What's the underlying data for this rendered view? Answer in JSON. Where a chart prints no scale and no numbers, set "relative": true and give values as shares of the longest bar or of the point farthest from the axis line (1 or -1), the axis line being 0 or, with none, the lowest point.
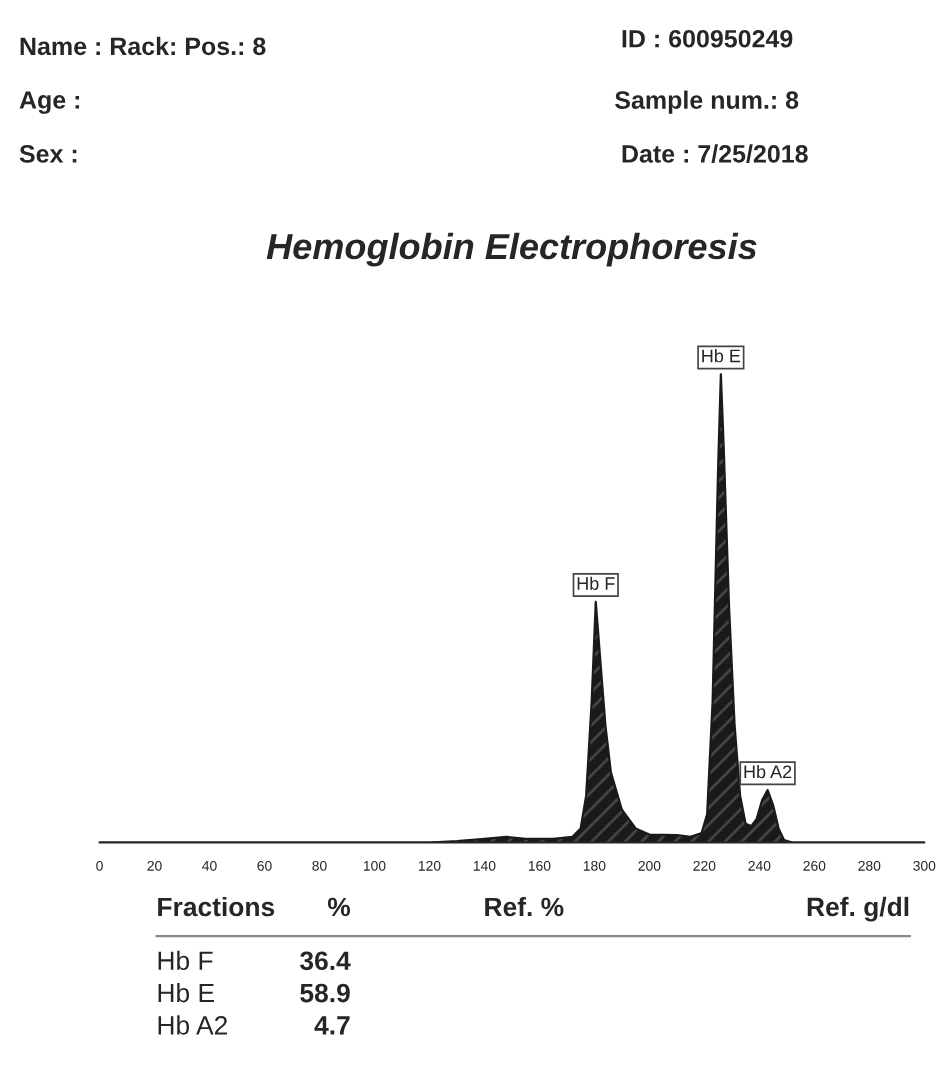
{
  "chart_data": {
    "type": "area",
    "title": "Hemoglobin Electrophoresis",
    "relative": true,
    "x": [
      0,
      120,
      130,
      140,
      148,
      155,
      165,
      172,
      175,
      177,
      179,
      180.5,
      182,
      184,
      186,
      190,
      195,
      200,
      210,
      215,
      219,
      221,
      223,
      225,
      226,
      227,
      229,
      231,
      233,
      235,
      237,
      239,
      241,
      243,
      245,
      247,
      249,
      252,
      300
    ],
    "series": [
      {
        "color": "#1a1a1a",
        "values": [
          0,
          0,
          0.003,
          0.008,
          0.012,
          0.008,
          0.008,
          0.012,
          0.03,
          0.1,
          0.3,
          0.514,
          0.4,
          0.25,
          0.15,
          0.07,
          0.03,
          0.017,
          0.016,
          0.012,
          0.02,
          0.06,
          0.3,
          0.8,
          1.0,
          0.85,
          0.5,
          0.25,
          0.1,
          0.04,
          0.035,
          0.05,
          0.09,
          0.112,
          0.08,
          0.03,
          0.005,
          0,
          0
        ]
      }
    ],
    "xlim": [
      0,
      300
    ],
    "xticks": [
      0,
      20,
      40,
      60,
      80,
      100,
      120,
      140,
      160,
      180,
      200,
      220,
      240,
      260,
      280,
      300
    ],
    "grid": false,
    "legend": false,
    "annotations": [
      "Name : Rack: Pos.: 8",
      "ID : 600950249",
      "Age :",
      "Sample num.: 8",
      "Sex :",
      "Date : 7/25/2018",
      "Fractions",
      "%",
      "Ref. %",
      "Ref. g/dl",
      "Hb F",
      "36.4",
      "Hb E",
      "58.9",
      "Hb A2",
      "4.7",
      {
        "text": "Hb F",
        "x": 180.5,
        "y": 0.514
      },
      {
        "text": "Hb E",
        "x": 226,
        "y": 1.0
      },
      {
        "text": "Hb A2",
        "x": 243,
        "y": 0.112
      }
    ]
  }
}
